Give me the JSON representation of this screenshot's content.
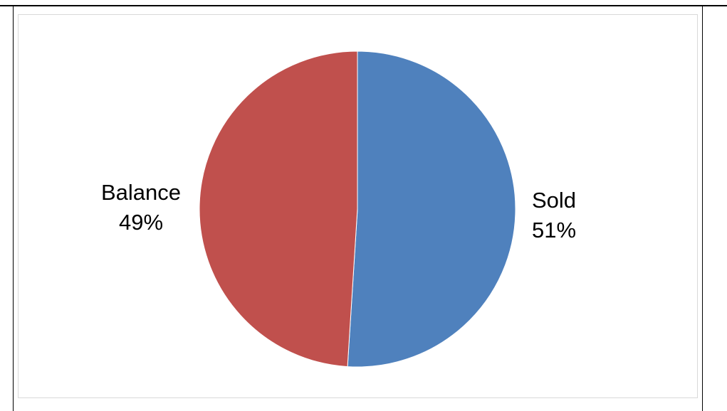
{
  "chart_data": {
    "type": "pie",
    "categories": [
      "Sold",
      "Balance"
    ],
    "values": [
      51,
      49
    ],
    "colors": [
      "#4f81bd",
      "#c0504d"
    ],
    "data_labels": [
      {
        "category": "Sold",
        "value": "51%"
      },
      {
        "category": "Balance",
        "value": "49%"
      }
    ],
    "title": "",
    "legend": "none"
  }
}
